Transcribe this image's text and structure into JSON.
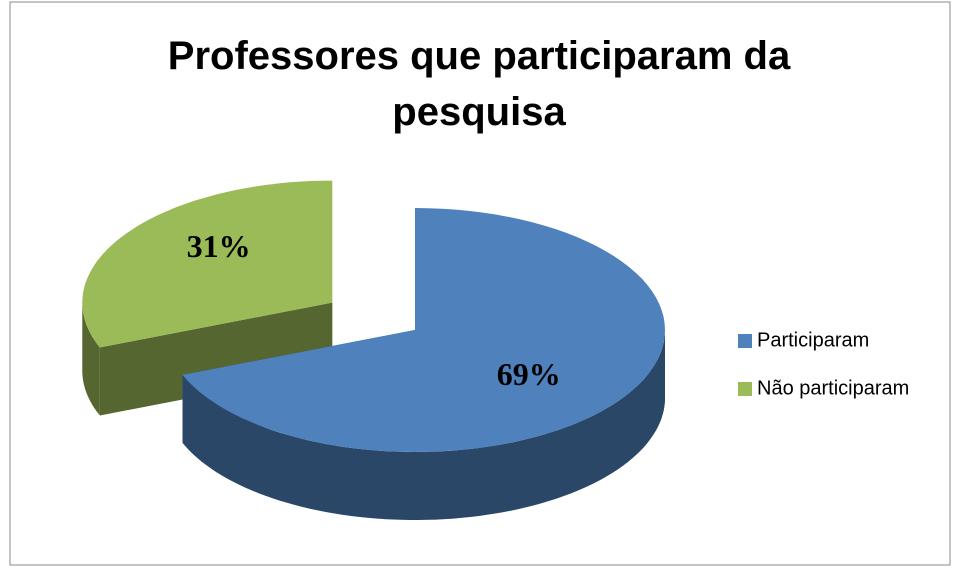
{
  "chart_data": {
    "type": "pie3d",
    "title": "Professores que participaram da pesquisa",
    "categories": [
      "Participaram",
      "Não participaram"
    ],
    "values": [
      69,
      31
    ],
    "value_labels": [
      "69%",
      "31%"
    ],
    "colors": [
      "#4f81bd",
      "#9bbb59"
    ],
    "legend": "right"
  }
}
